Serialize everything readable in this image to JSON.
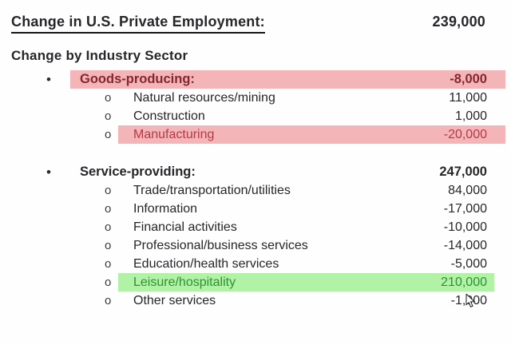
{
  "header": {
    "title": "Change in U.S. Private Employment:",
    "value": "239,000"
  },
  "section": {
    "title": "Change by Industry Sector"
  },
  "bullets": {
    "level1": "•",
    "level2": "o"
  },
  "rows": [
    {
      "label": "Goods-producing:",
      "value": "-8,000",
      "level": 1,
      "bold": true,
      "highlight": "red"
    },
    {
      "label": "Natural resources/mining",
      "value": "11,000",
      "level": 2,
      "bold": false,
      "highlight": "none"
    },
    {
      "label": "Construction",
      "value": "1,000",
      "level": 2,
      "bold": false,
      "highlight": "none"
    },
    {
      "label": "Manufacturing",
      "value": "-20,000",
      "level": 2,
      "bold": false,
      "highlight": "red"
    },
    {
      "gap": true
    },
    {
      "label": "Service-providing:",
      "value": "247,000",
      "level": 1,
      "bold": true,
      "highlight": "none"
    },
    {
      "label": "Trade/transportation/utilities",
      "value": "84,000",
      "level": 2,
      "bold": false,
      "highlight": "none"
    },
    {
      "label": "Information",
      "value": "-17,000",
      "level": 2,
      "bold": false,
      "highlight": "none"
    },
    {
      "label": "Financial activities",
      "value": "-10,000",
      "level": 2,
      "bold": false,
      "highlight": "none"
    },
    {
      "label": "Professional/business services",
      "value": "-14,000",
      "level": 2,
      "bold": false,
      "highlight": "none"
    },
    {
      "label": "Education/health services",
      "value": "-5,000",
      "level": 2,
      "bold": false,
      "highlight": "none"
    },
    {
      "label": "Leisure/hospitality",
      "value": "210,000",
      "level": 2,
      "bold": false,
      "highlight": "green"
    },
    {
      "label": "Other services",
      "value": "-1,000",
      "level": 2,
      "bold": false,
      "highlight": "none"
    }
  ],
  "colors": {
    "highlight_red": "#f4b5b9",
    "highlight_green": "#b1f2a7",
    "text_maroon": "#852631",
    "text_red": "#b23b43",
    "text_green": "#2e9133",
    "text_default": "#26262b"
  }
}
